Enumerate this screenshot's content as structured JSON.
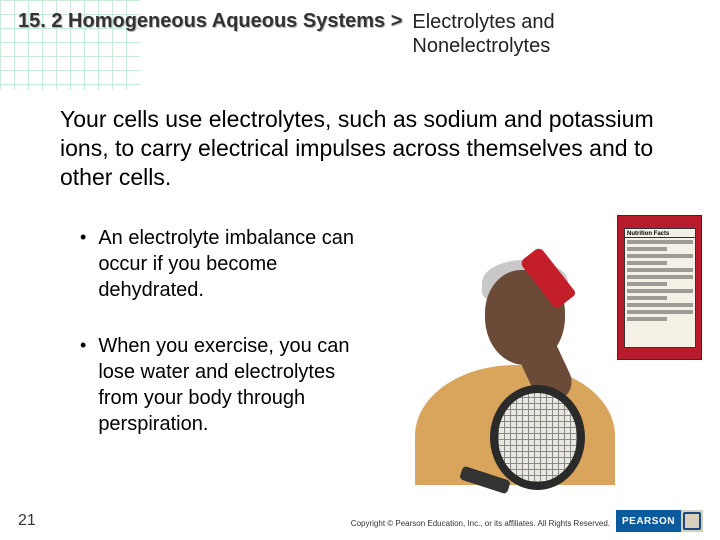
{
  "header": {
    "section_label": "15. 2 Homogeneous Aqueous Systems >",
    "subtitle_line1": "Electrolytes and",
    "subtitle_line2": "Nonelectrolytes"
  },
  "main_text": "Your cells use electrolytes, such as sodium and potassium ions, to carry electrical impulses across themselves and to other cells.",
  "bullets": [
    "An electrolyte imbalance can occur if you become dehydrated.",
    "When you exercise, you can lose water and electrolytes from your body through perspiration."
  ],
  "nutrition_label": {
    "title": "Nutrition Facts"
  },
  "footer": {
    "page_number": "21",
    "copyright": "Copyright © Pearson Education, Inc., or its affiliates. All Rights Reserved.",
    "logo_text": "PEARSON"
  },
  "colors": {
    "grid": "#c0ead0",
    "shirt": "#d9a55c",
    "skin": "#6b4a38",
    "bottle": "#c41e2a",
    "label_panel": "#b81c2c",
    "pearson_blue": "#0a5a9e"
  }
}
